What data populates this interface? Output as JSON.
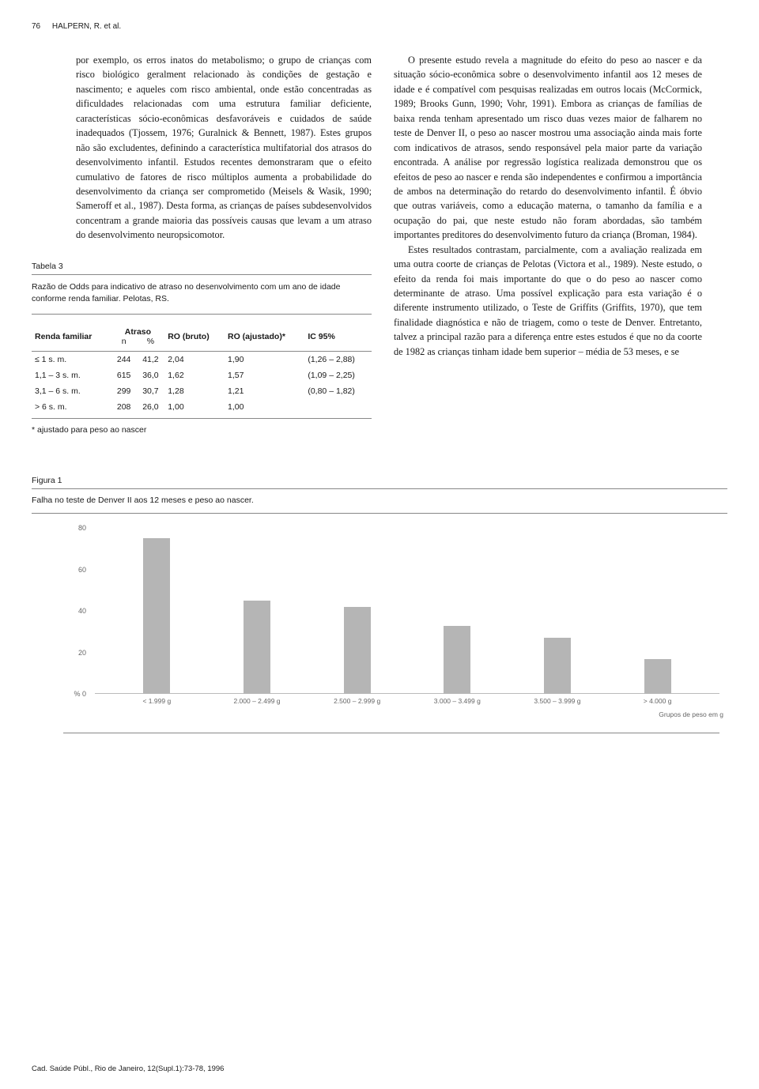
{
  "header": {
    "page_num": "76",
    "running": "HALPERN, R. et al."
  },
  "left_para": "por exemplo, os erros inatos do metabolismo; o grupo de crianças com risco biológico geralment relacionado às condições de gestação e nascimento; e aqueles com risco ambiental, onde estão concentradas as dificuldades relacionadas com uma estrutura familiar deficiente, características sócio-econômicas desfavoráveis e cuidados de saúde inadequados (Tjossem, 1976; Guralnick & Bennett, 1987). Estes grupos não são excludentes, definindo a característica multifatorial dos atrasos do desenvolvimento infantil. Estudos recentes demonstraram que o efeito cumulativo de fatores de risco múltiplos aumenta a probabilidade do desenvolvimento da criança ser comprometido (Meisels & Wasik, 1990; Sameroff et al., 1987). Desta forma, as crianças de países subdesenvolvidos concentram a grande maioria das possíveis causas que levam a um atraso do desenvolvimento neuropsicomotor.",
  "right_para1": "O presente estudo revela a magnitude do efeito do peso ao nascer e da situação sócio-econômica sobre o desenvolvimento infantil aos 12 meses de idade e é compatível com pesquisas realizadas em outros locais (McCormick, 1989; Brooks Gunn, 1990; Vohr, 1991). Embora as crianças de famílias de baixa renda tenham apresentado um risco duas vezes maior de falharem no teste de Denver II, o peso ao nascer mostrou uma associação ainda mais forte com indicativos de atrasos, sendo responsável pela maior parte da variação encontrada. A análise por regressão logística realizada demonstrou que os efeitos de peso ao nascer e renda são independentes e confirmou a importância de ambos na determinação do retardo do desenvolvimento infantil. É óbvio que outras variáveis, como a educação materna, o tamanho da família e a ocupação do pai, que neste estudo não foram abordadas, são também importantes preditores do desenvolvimento futuro da criança (Broman, 1984).",
  "right_para2": "Estes resultados contrastam, parcialmente, com a avaliação realizada em uma outra coorte de crianças de Pelotas (Victora et al., 1989). Neste estudo, o efeito da renda foi mais importante do que o do peso ao nascer como determinante de atraso. Uma possível explicação para esta variação é o diferente instrumento utilizado, o Teste de Griffits (Griffits, 1970), que tem finalidade diagnóstica e não de triagem, como o teste de Denver. Entretanto, talvez a principal razão para a diferença entre estes estudos é que no da coorte de 1982 as crianças tinham idade bem superior – média de 53 meses, e se",
  "table": {
    "label": "Tabela 3",
    "caption": "Razão de Odds para indicativo de atraso no desenvolvimento com um ano de idade conforme renda familiar. Pelotas, RS.",
    "headers": {
      "col1": "Renda familiar",
      "col2group": "Atraso",
      "col2a": "n",
      "col2b": "%",
      "col3": "RO (bruto)",
      "col4": "RO (ajustado)*",
      "col5": "IC 95%"
    },
    "rows": [
      {
        "renda": "≤ 1 s. m.",
        "n": "244",
        "pct": "41,2",
        "rob": "2,04",
        "roa": "1,90",
        "ic": "(1,26 – 2,88)"
      },
      {
        "renda": "1,1 – 3 s. m.",
        "n": "615",
        "pct": "36,0",
        "rob": "1,62",
        "roa": "1,57",
        "ic": "(1,09 – 2,25)"
      },
      {
        "renda": "3,1 – 6 s. m.",
        "n": "299",
        "pct": "30,7",
        "rob": "1,28",
        "roa": "1,21",
        "ic": "(0,80 – 1,82)"
      },
      {
        "renda": "> 6 s. m.",
        "n": "208",
        "pct": "26,0",
        "rob": "1,00",
        "roa": "1,00",
        "ic": ""
      }
    ],
    "note": "* ajustado para peso ao nascer"
  },
  "figure": {
    "label": "Figura 1",
    "caption": "Falha no teste de Denver II aos 12 meses e peso ao nascer.",
    "type": "bar",
    "ylim": [
      0,
      80
    ],
    "ytick_step": 20,
    "y_ticks": [
      "80",
      "60",
      "40",
      "20",
      "%  0"
    ],
    "x_axis_label": "Grupos de peso em g",
    "bar_color": "#b5b5b5",
    "background_color": "#ffffff",
    "categories": [
      "< 1.999 g",
      "2.000 – 2.499 g",
      "2.500 – 2.999 g",
      "3.000 – 3.499 g",
      "3.500 – 3.999 g",
      "> 4.000 g"
    ],
    "values": [
      75,
      45,
      42,
      33,
      27,
      17
    ]
  },
  "footer": "Cad. Saúde Públ., Rio de Janeiro, 12(Supl.1):73-78, 1996"
}
